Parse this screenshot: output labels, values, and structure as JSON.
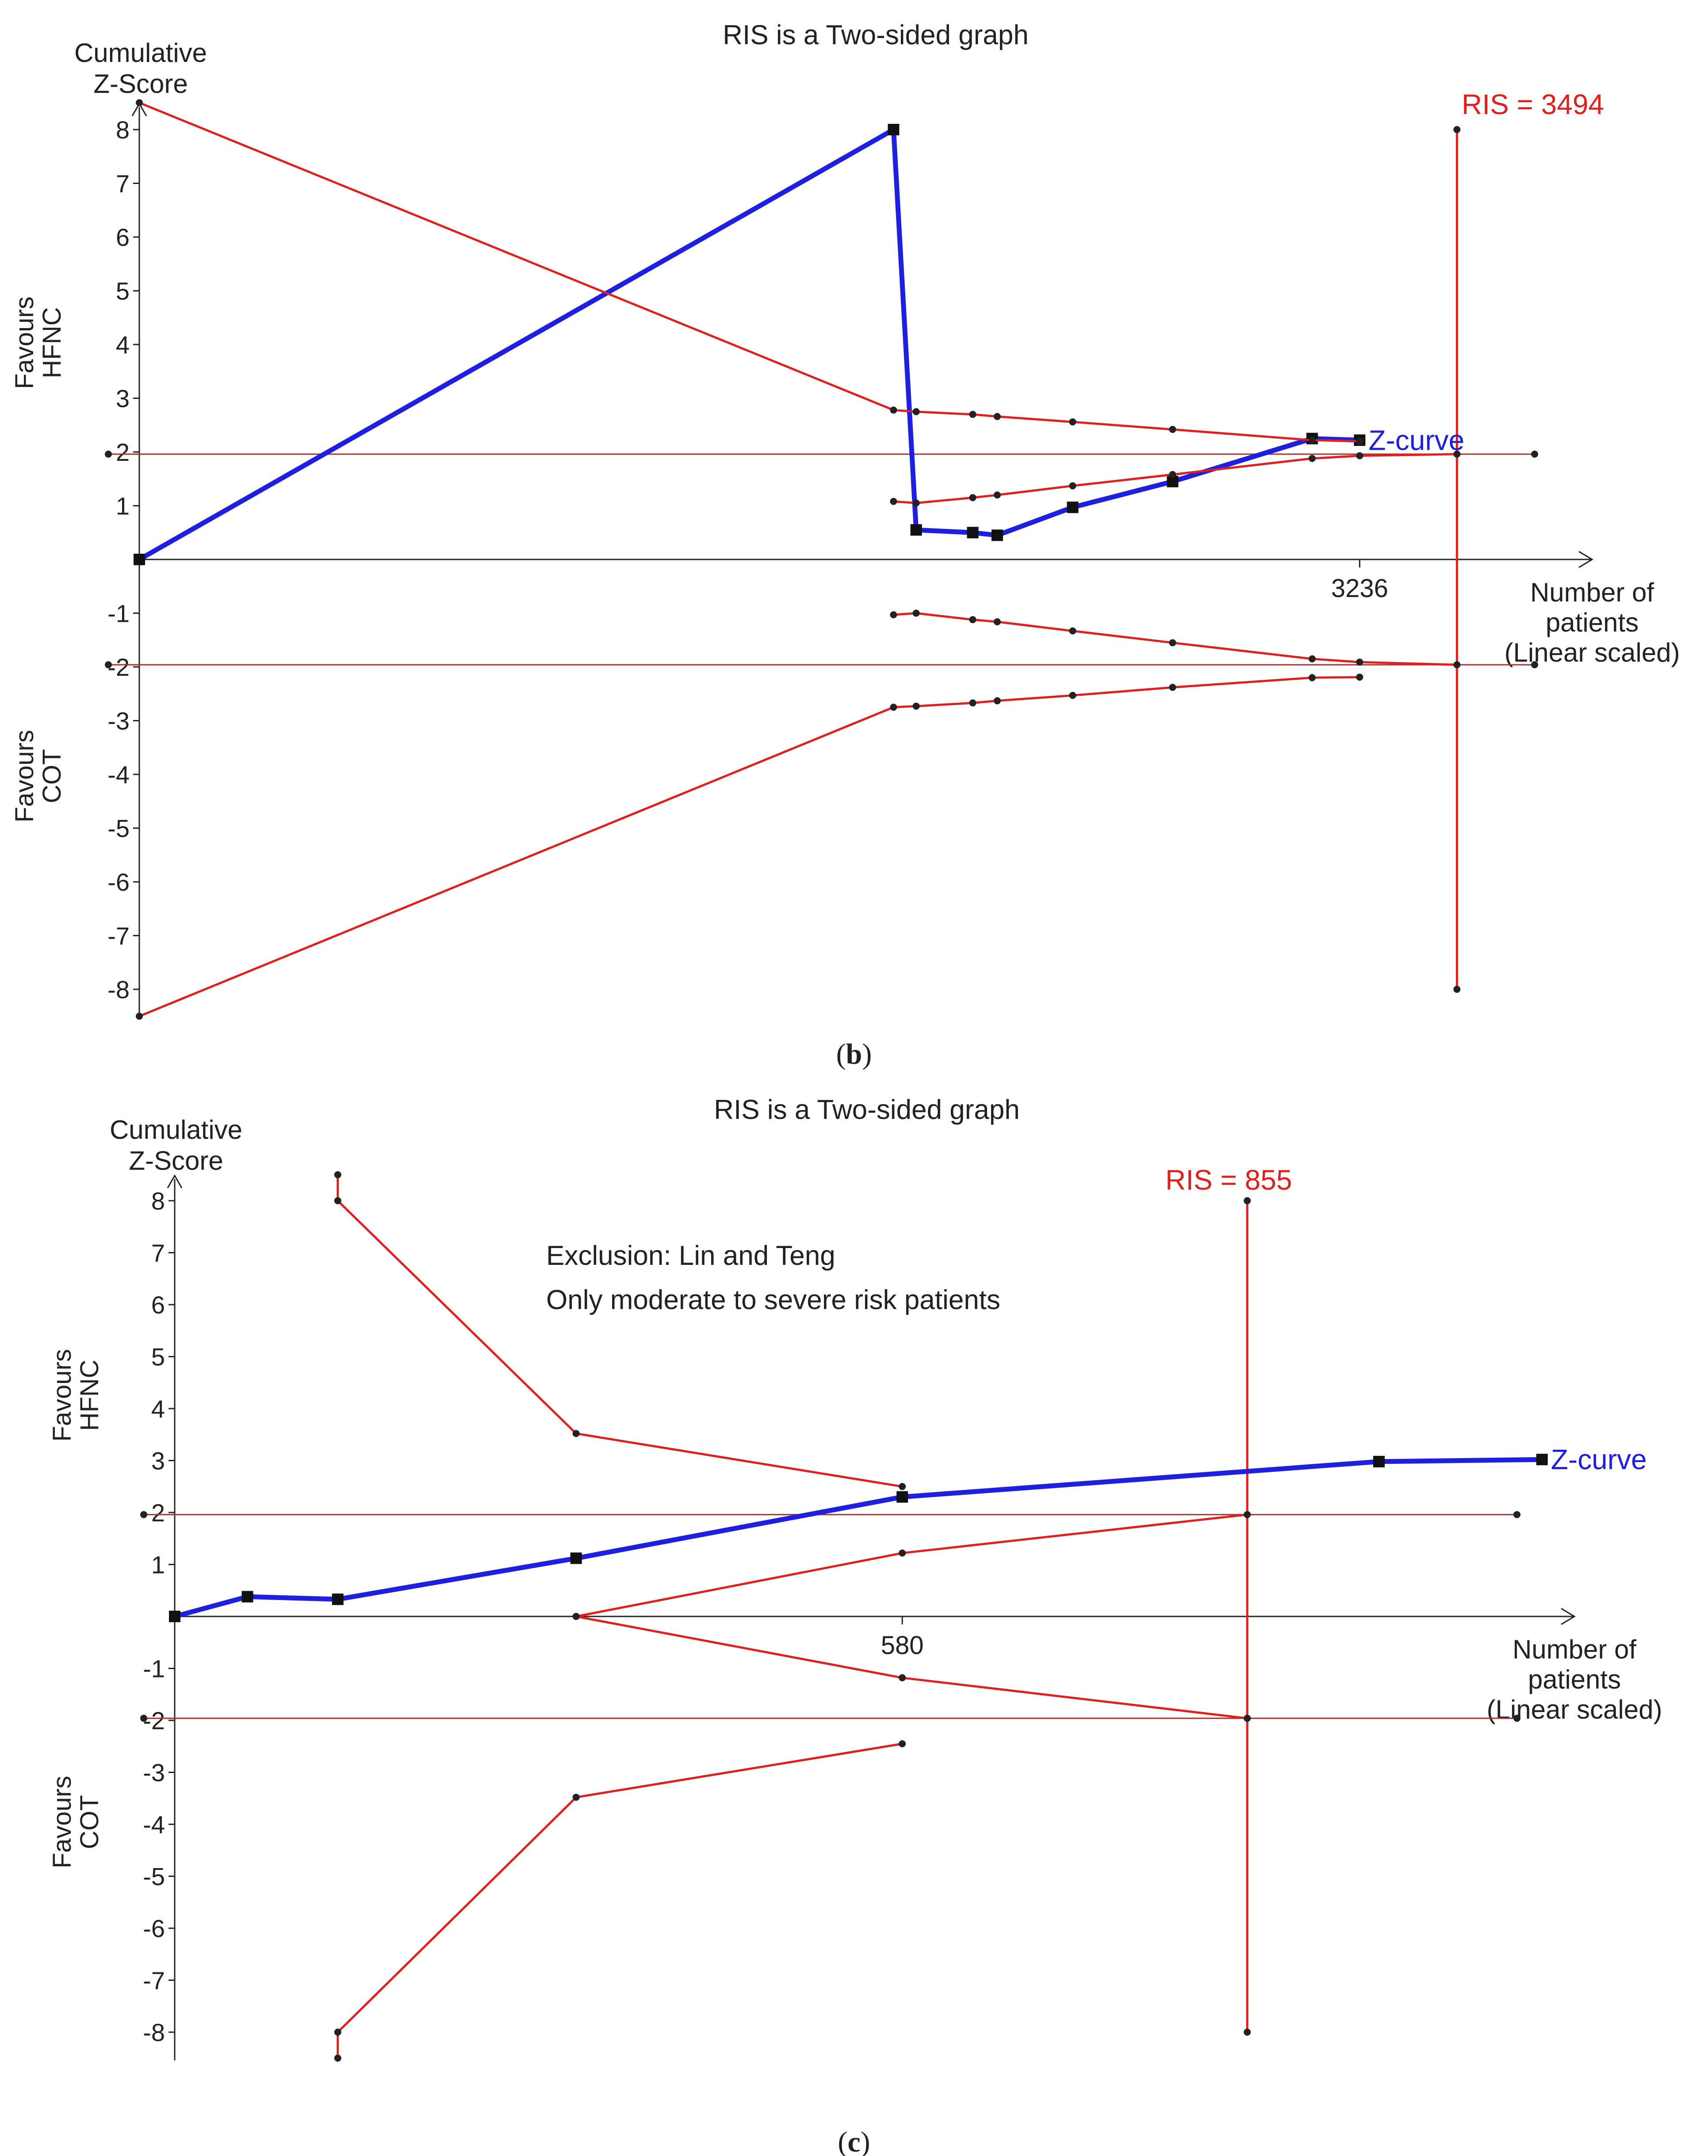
{
  "chart_data": [
    {
      "panel_label": "b",
      "type": "line",
      "title": "RIS is a Two-sided graph",
      "ylabel_lines": [
        "Cumulative",
        "Z-Score"
      ],
      "upper_side_lines": [
        "Favours",
        "HFNC"
      ],
      "lower_side_lines": [
        "Favours",
        "COT"
      ],
      "xlabel_lines": [
        "Number of",
        "patients",
        "(Linear scaled)"
      ],
      "ylim": [
        -8.5,
        8.5
      ],
      "xlim": [
        0,
        3700
      ],
      "y_ticks": [
        8,
        7,
        6,
        5,
        4,
        3,
        2,
        1,
        -1,
        -2,
        -3,
        -4,
        -5,
        -6,
        -7,
        -8
      ],
      "x_tick_labels": [
        {
          "x": 3236,
          "label": "3236"
        }
      ],
      "ris": {
        "x": 3494,
        "label": "RIS = 3494",
        "ymin": -8,
        "ymax": 8
      },
      "conventional_boundaries": [
        1.96,
        -1.96
      ],
      "series": [
        {
          "name": "Z-curve",
          "role": "z",
          "color": "#1f1fe0",
          "marker": "square",
          "x": [
            0,
            2000,
            2060,
            2210,
            2275,
            2475,
            2740,
            3110,
            3236
          ],
          "y": [
            0,
            8,
            0.55,
            0.5,
            0.45,
            0.97,
            1.45,
            2.25,
            2.22
          ]
        },
        {
          "name": "Upper boundary",
          "role": "boundary",
          "color": "#e01f1f",
          "marker": "dot",
          "x": [
            0,
            2000,
            2060,
            2210,
            2275,
            2475,
            2740,
            3110,
            3236
          ],
          "y": [
            8.5,
            2.78,
            2.75,
            2.7,
            2.66,
            2.56,
            2.42,
            2.22,
            2.2
          ]
        },
        {
          "name": "Upper futility",
          "role": "boundary",
          "color": "#e01f1f",
          "marker": "dot",
          "x": [
            2000,
            2060,
            2210,
            2275,
            2475,
            2740,
            3110,
            3236,
            3494
          ],
          "y": [
            1.08,
            1.05,
            1.15,
            1.2,
            1.37,
            1.58,
            1.88,
            1.93,
            1.96
          ]
        },
        {
          "name": "Lower futility",
          "role": "boundary",
          "color": "#e01f1f",
          "marker": "dot",
          "x": [
            2000,
            2060,
            2210,
            2275,
            2475,
            2740,
            3110,
            3236,
            3494
          ],
          "y": [
            -1.03,
            -1.0,
            -1.12,
            -1.16,
            -1.33,
            -1.55,
            -1.85,
            -1.91,
            -1.96
          ]
        },
        {
          "name": "Lower boundary",
          "role": "boundary",
          "color": "#e01f1f",
          "marker": "dot",
          "x": [
            0,
            2000,
            2060,
            2210,
            2275,
            2475,
            2740,
            3110,
            3236
          ],
          "y": [
            -8.5,
            -2.75,
            -2.73,
            -2.67,
            -2.63,
            -2.53,
            -2.38,
            -2.2,
            -2.19
          ]
        }
      ],
      "z_curve_label": "Z-curve",
      "annotation_lines": []
    },
    {
      "panel_label": "c",
      "type": "line",
      "title": "RIS is a Two-sided graph",
      "ylabel_lines": [
        "Cumulative",
        "Z-Score"
      ],
      "upper_side_lines": [
        "Favours",
        "HFNC"
      ],
      "lower_side_lines": [
        "Favours",
        "COT"
      ],
      "xlabel_lines": [
        "Number of",
        "patients",
        "(Linear scaled)"
      ],
      "ylim": [
        -8.5,
        8.5
      ],
      "xlim": [
        0,
        1070
      ],
      "y_ticks": [
        8,
        7,
        6,
        5,
        4,
        3,
        2,
        1,
        -1,
        -2,
        -3,
        -4,
        -5,
        -6,
        -7,
        -8
      ],
      "x_tick_labels": [
        {
          "x": 580,
          "label": "580"
        }
      ],
      "ris": {
        "x": 855,
        "label": "RIS = 855",
        "ymin": -8,
        "ymax": 8
      },
      "conventional_boundaries": [
        1.96,
        -1.96
      ],
      "series": [
        {
          "name": "Z-curve",
          "role": "z",
          "color": "#1f1fe0",
          "marker": "square",
          "x": [
            0,
            58,
            130,
            320,
            580,
            960,
            1090
          ],
          "y": [
            0,
            0.38,
            0.33,
            1.12,
            2.3,
            2.98,
            3.02
          ]
        },
        {
          "name": "Upper boundary",
          "role": "boundary",
          "color": "#e01f1f",
          "marker": "dot",
          "x": [
            130,
            130,
            320,
            580
          ],
          "y": [
            8.5,
            8.0,
            3.52,
            2.5
          ]
        },
        {
          "name": "Upper futility",
          "role": "boundary",
          "color": "#e01f1f",
          "marker": "dot",
          "x": [
            320,
            580,
            855
          ],
          "y": [
            0,
            1.22,
            1.96
          ]
        },
        {
          "name": "Lower futility",
          "role": "boundary",
          "color": "#e01f1f",
          "marker": "dot",
          "x": [
            320,
            580,
            855
          ],
          "y": [
            0,
            -1.18,
            -1.96
          ]
        },
        {
          "name": "Lower boundary",
          "role": "boundary",
          "color": "#e01f1f",
          "marker": "dot",
          "x": [
            130,
            130,
            320,
            580
          ],
          "y": [
            -8.5,
            -8.0,
            -3.48,
            -2.45
          ]
        }
      ],
      "z_curve_label": "Z-curve",
      "annotation_lines": [
        "Exclusion: Lin and Teng",
        "Only moderate to severe risk patients"
      ]
    }
  ]
}
